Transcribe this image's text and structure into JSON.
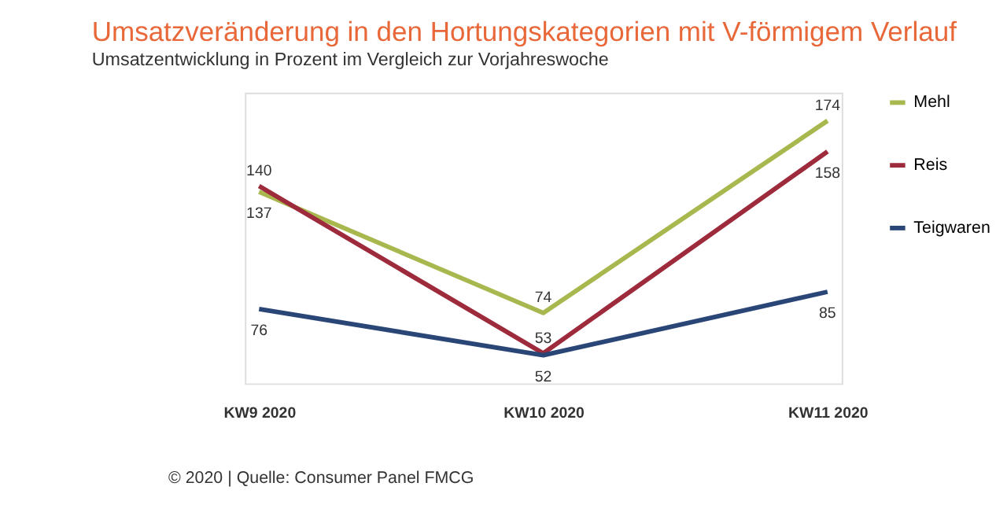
{
  "chart_data": {
    "type": "line",
    "title": "Umsatzveränderung in den Hortungskategorien mit V-förmigem Verlauf",
    "subtitle": "Umsatzentwicklung in Prozent im Vergleich zur Vorjahreswoche",
    "categories": [
      "KW9 2020",
      "KW10 2020",
      "KW11 2020"
    ],
    "series": [
      {
        "name": "Mehl",
        "color": "#a9b84e",
        "values": [
          137,
          74,
          174
        ]
      },
      {
        "name": "Reis",
        "color": "#9e2b3c",
        "values": [
          140,
          53,
          158
        ]
      },
      {
        "name": "Teigwaren",
        "color": "#2a4677",
        "values": [
          76,
          52,
          85
        ]
      }
    ],
    "data_labels": true,
    "legend": "right",
    "grid": false,
    "marker": "none",
    "line_style": "solid",
    "annotations": [
      "© 2020 | Quelle: Consumer Panel FMCG"
    ]
  }
}
